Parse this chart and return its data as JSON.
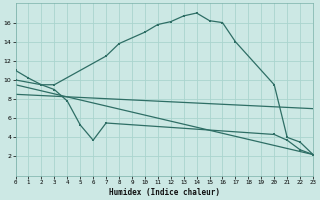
{
  "xlabel": "Humidex (Indice chaleur)",
  "bg_color": "#cce8e4",
  "line_color": "#2e6e65",
  "grid_color": "#aad4ce",
  "line1_x": [
    0,
    1,
    2,
    3,
    7,
    8,
    10,
    11,
    12,
    13,
    14,
    15,
    16,
    17,
    20,
    21,
    22,
    23
  ],
  "line1_y": [
    11,
    10.2,
    9.5,
    9.5,
    12.5,
    13.8,
    15,
    15.8,
    16.1,
    16.7,
    17.0,
    16.2,
    16.0,
    14,
    9.5,
    4,
    3.5,
    2.2
  ],
  "line2_x": [
    0,
    2,
    3,
    4,
    5,
    6,
    7,
    20,
    21,
    22,
    23
  ],
  "line2_y": [
    10,
    9.5,
    9,
    7.8,
    5.3,
    3.7,
    5.5,
    4.3,
    3.7,
    2.7,
    2.2
  ],
  "line3_x": [
    0,
    23
  ],
  "line3_y": [
    9.5,
    2.2
  ],
  "line4_x": [
    0,
    23
  ],
  "line4_y": [
    8.5,
    7.0
  ],
  "xlim": [
    0,
    23
  ],
  "ylim": [
    0,
    18
  ],
  "yticks": [
    2,
    4,
    6,
    8,
    10,
    12,
    14,
    16
  ],
  "xticks": [
    0,
    1,
    2,
    3,
    4,
    5,
    6,
    7,
    8,
    9,
    10,
    11,
    12,
    13,
    14,
    15,
    16,
    17,
    18,
    19,
    20,
    21,
    22,
    23
  ]
}
